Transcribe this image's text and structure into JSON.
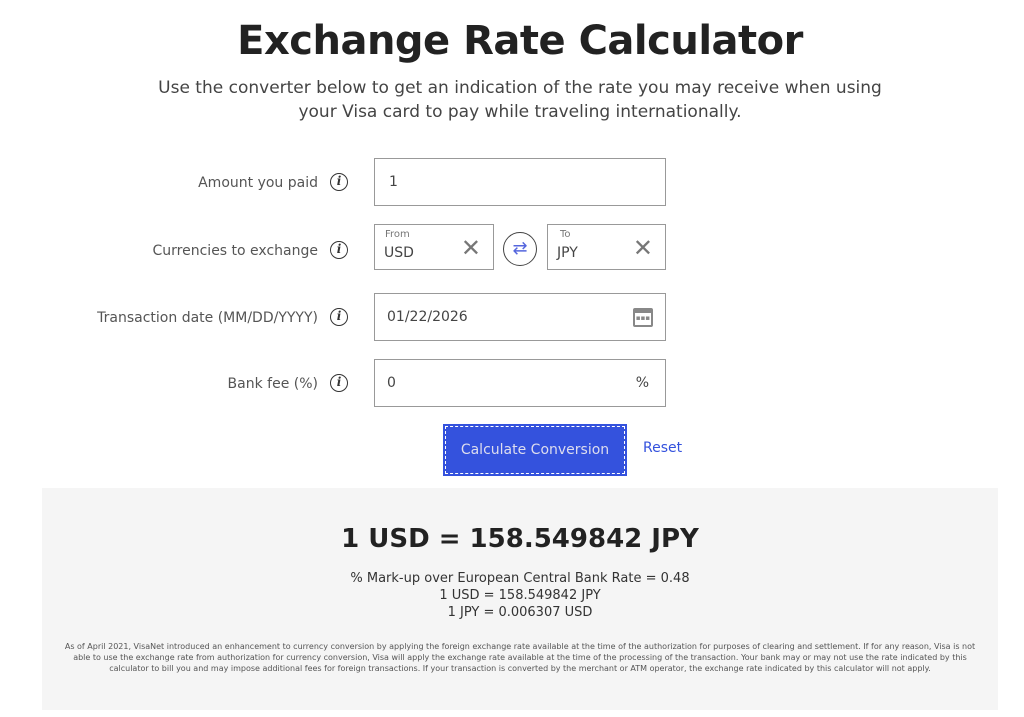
{
  "title": "Exchange Rate Calculator",
  "subtitle": "Use the converter below to get an indication of the rate you may receive when using your Visa card to pay while traveling internationally.",
  "form": {
    "amount": {
      "label": "Amount you paid",
      "value": "1"
    },
    "currencies": {
      "label": "Currencies to exchange",
      "from_label": "From",
      "from_value": "USD",
      "to_label": "To",
      "to_value": "JPY"
    },
    "date": {
      "label": "Transaction date (MM/DD/YYYY)",
      "value": "01/22/2026"
    },
    "fee": {
      "label": "Bank fee (%)",
      "value": "0",
      "suffix": "%"
    },
    "calculate_label": "Calculate Conversion",
    "reset_label": "Reset"
  },
  "result": {
    "headline": "1 USD = 158.549842 JPY",
    "markup": "% Mark-up over European Central Bank Rate = 0.48",
    "forward": "1 USD = 158.549842 JPY",
    "reverse": "1 JPY = 0.006307 USD",
    "disclaimer": "As of April 2021, VisaNet introduced an enhancement to currency conversion by applying the foreign exchange rate available at the time of the authorization for purposes of clearing and settlement. If for any reason, Visa is not able to use the exchange rate from authorization for currency conversion, Visa will apply the exchange rate available at the time of the processing of the transaction. Your bank may or may not use the rate indicated by this calculator to bill you and may impose additional fees for foreign transactions. If your transaction is converted by the merchant or ATM operator, the exchange rate indicated by this calculator will not apply."
  },
  "colors": {
    "accent": "#3452dd",
    "result_bg": "#f5f5f5"
  }
}
